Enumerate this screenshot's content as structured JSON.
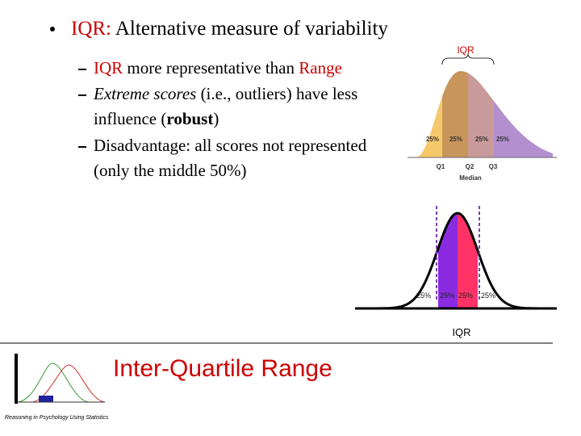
{
  "bullet": {
    "term": "IQR:",
    "text": "Alternative measure of variability"
  },
  "sub_bullets": [
    {
      "parts": [
        "IQR",
        "more representative than",
        "Range"
      ]
    },
    {
      "parts": [
        "Extreme scores",
        "(i.e., outliers) have less influence (",
        "robust",
        ")"
      ]
    },
    {
      "parts": [
        "Disadvantage: all scores not represented (only the middle 50%)"
      ]
    }
  ],
  "figure_top": {
    "bracket_label": "IQR",
    "quarter_labels": [
      "25%",
      "25%",
      "25%",
      "25%"
    ],
    "quartiles": [
      "Q1",
      "Q2",
      "Q3"
    ],
    "median_label": "Median"
  },
  "figure_bottom": {
    "quarter_labels": [
      "25%",
      "25%",
      "25%",
      "25%"
    ],
    "bracket_label": "IQR"
  },
  "footer": {
    "title": "Inter-Quartile Range",
    "course": "Reasoning in Psychology Using Statistics"
  }
}
